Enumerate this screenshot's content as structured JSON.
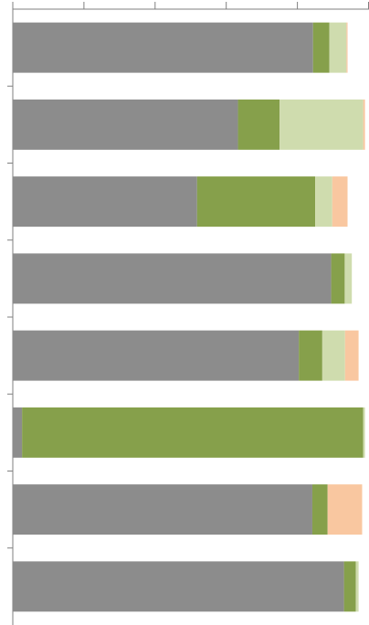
{
  "chart_data": {
    "type": "stacked-barh",
    "categories": [
      null,
      null,
      null,
      null,
      null,
      null,
      null,
      null
    ],
    "series": [
      {
        "color": "#8c8c8c",
        "values": [
          84.4,
          63.3,
          51.8,
          89.5,
          80.4,
          2.6,
          84.2,
          93.1
        ]
      },
      {
        "color": "#86a04b",
        "values": [
          4.6,
          11.7,
          33.2,
          3.8,
          6.6,
          95.9,
          4.3,
          3.3
        ]
      },
      {
        "color": "#cfdcae",
        "values": [
          4.8,
          23.5,
          4.8,
          2.0,
          6.4,
          0.5,
          0,
          0.8
        ]
      },
      {
        "color": "#f9c7a0",
        "values": [
          0.3,
          0.5,
          4.3,
          0,
          3.8,
          0,
          9.7,
          0
        ]
      }
    ],
    "xlim": [
      0,
      100
    ],
    "xticks": [
      0,
      20,
      40,
      60,
      80,
      100
    ]
  }
}
